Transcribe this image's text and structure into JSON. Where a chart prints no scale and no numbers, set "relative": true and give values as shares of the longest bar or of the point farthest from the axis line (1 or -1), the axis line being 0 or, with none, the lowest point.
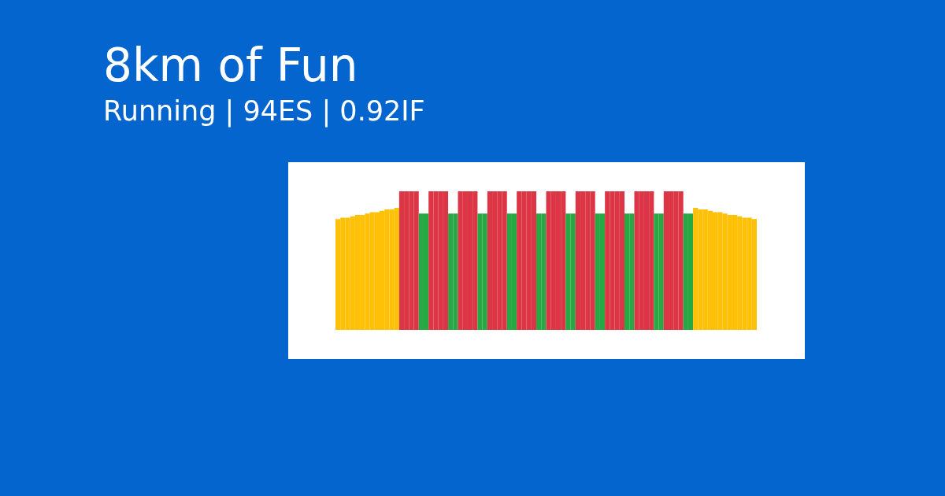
{
  "chart_data": {
    "type": "bar",
    "title": "8km of Fun",
    "subtitle": "Running | 94ES | 0.92IF",
    "relative": true,
    "categories": [
      null,
      null,
      null,
      null,
      null,
      null,
      null,
      null,
      null,
      null,
      null,
      null,
      null,
      null,
      null,
      null,
      null,
      null,
      null,
      null,
      null,
      null,
      null,
      null,
      null,
      null,
      null,
      null,
      null,
      null,
      null,
      null,
      null,
      null,
      null,
      null,
      null,
      null,
      null,
      null,
      null,
      null,
      null,
      null,
      null,
      null,
      null,
      null,
      null,
      null,
      null,
      null,
      null,
      null,
      null,
      null,
      null,
      null,
      null,
      null,
      null,
      null,
      null,
      null,
      null,
      null,
      null,
      null,
      null,
      null,
      null,
      null,
      null,
      null,
      null,
      null,
      null,
      null,
      null,
      null,
      null,
      null,
      null,
      null,
      null,
      null
    ],
    "values": [
      0.8,
      0.81,
      0.81,
      0.82,
      0.83,
      0.83,
      0.84,
      0.85,
      0.85,
      0.86,
      0.87,
      0.87,
      0.88,
      1,
      1,
      1,
      1,
      0.84,
      0.84,
      1,
      1,
      1,
      1,
      0.84,
      0.84,
      1,
      1,
      1,
      1,
      0.84,
      0.84,
      1,
      1,
      1,
      1,
      0.84,
      0.84,
      1,
      1,
      1,
      1,
      0.84,
      0.84,
      1,
      1,
      1,
      1,
      0.84,
      0.84,
      1,
      1,
      1,
      1,
      0.84,
      0.84,
      1,
      1,
      1,
      1,
      0.84,
      0.84,
      1,
      1,
      1,
      1,
      0.84,
      0.84,
      1,
      1,
      1,
      1,
      0.84,
      0.84,
      0.88,
      0.87,
      0.87,
      0.86,
      0.85,
      0.85,
      0.84,
      0.83,
      0.83,
      0.82,
      0.81,
      0.81,
      0.8
    ],
    "colors": [
      "#ffc107",
      "#ffc107",
      "#ffc107",
      "#ffc107",
      "#ffc107",
      "#ffc107",
      "#ffc107",
      "#ffc107",
      "#ffc107",
      "#ffc107",
      "#ffc107",
      "#ffc107",
      "#ffc107",
      "#dc3545",
      "#dc3545",
      "#dc3545",
      "#dc3545",
      "#28a745",
      "#28a745",
      "#dc3545",
      "#dc3545",
      "#dc3545",
      "#dc3545",
      "#28a745",
      "#28a745",
      "#dc3545",
      "#dc3545",
      "#dc3545",
      "#dc3545",
      "#28a745",
      "#28a745",
      "#dc3545",
      "#dc3545",
      "#dc3545",
      "#dc3545",
      "#28a745",
      "#28a745",
      "#dc3545",
      "#dc3545",
      "#dc3545",
      "#dc3545",
      "#28a745",
      "#28a745",
      "#dc3545",
      "#dc3545",
      "#dc3545",
      "#dc3545",
      "#28a745",
      "#28a745",
      "#dc3545",
      "#dc3545",
      "#dc3545",
      "#dc3545",
      "#28a745",
      "#28a745",
      "#dc3545",
      "#dc3545",
      "#dc3545",
      "#dc3545",
      "#28a745",
      "#28a745",
      "#dc3545",
      "#dc3545",
      "#dc3545",
      "#dc3545",
      "#28a745",
      "#28a745",
      "#dc3545",
      "#dc3545",
      "#dc3545",
      "#dc3545",
      "#28a745",
      "#28a745",
      "#ffc107",
      "#ffc107",
      "#ffc107",
      "#ffc107",
      "#ffc107",
      "#ffc107",
      "#ffc107",
      "#ffc107",
      "#ffc107",
      "#ffc107",
      "#ffc107",
      "#ffc107",
      "#ffc107"
    ]
  }
}
